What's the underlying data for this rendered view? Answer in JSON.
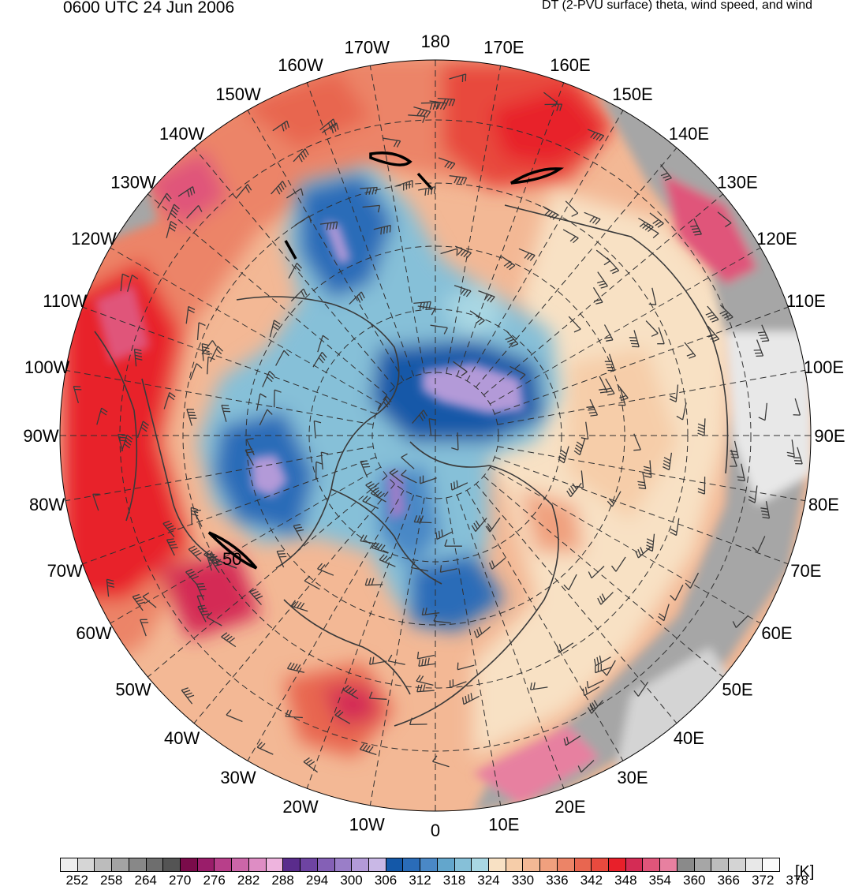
{
  "header": {
    "valid_time": "0600 UTC 24 Jun 2006",
    "description": "DT (2-PVU surface) theta, wind speed, and wind"
  },
  "map": {
    "projection": "north-polar-stereographic",
    "longitude_labels": [
      "180",
      "170E",
      "160E",
      "150E",
      "140E",
      "130E",
      "120E",
      "110E",
      "100E",
      "90E",
      "80E",
      "70E",
      "60E",
      "50E",
      "40E",
      "30E",
      "20E",
      "10E",
      "0",
      "10W",
      "20W",
      "30W",
      "40W",
      "50W",
      "60W",
      "70W",
      "80W",
      "90W",
      "100W",
      "110W",
      "120W",
      "130W",
      "140W",
      "150W",
      "160W",
      "170W"
    ],
    "contour_label": "50",
    "colors": {
      "cold_core": "#1450a0",
      "coldest": "#a890d8",
      "cool": "#7fc4dc",
      "neutral": "#f7d3b6",
      "warm": "#ef7d66",
      "hot": "#e8312e",
      "magenta": "#d84a7a",
      "gray_high": "#a5a5a5",
      "line": "#303030"
    }
  },
  "colorbar": {
    "unit": "[K]",
    "tick_labels": [
      "252",
      "258",
      "264",
      "270",
      "276",
      "282",
      "288",
      "294",
      "300",
      "306",
      "312",
      "318",
      "324",
      "330",
      "336",
      "342",
      "348",
      "354",
      "360",
      "366",
      "372",
      "378"
    ],
    "colors": [
      "#eeeeee",
      "#d6d6d6",
      "#bcbcbc",
      "#a3a3a3",
      "#888888",
      "#6e6e6e",
      "#545454",
      "#7a0b4a",
      "#9a1d6a",
      "#b83f8a",
      "#cb66a8",
      "#de8dc4",
      "#eeb4de",
      "#5a2c8c",
      "#6e44a2",
      "#8460b6",
      "#9a7ec8",
      "#b39ad8",
      "#c9b8e6",
      "#1458a8",
      "#2a6cb8",
      "#4a88c6",
      "#63a6cc",
      "#86c0d8",
      "#a9d7e3",
      "#f8e1c4",
      "#f6cda9",
      "#f3b895",
      "#f0a07e",
      "#ec8467",
      "#e86650",
      "#e84a3e",
      "#e8202a",
      "#d42c55",
      "#e0557a",
      "#e780a0",
      "#8a8a8a",
      "#a6a6a6",
      "#bdbdbd",
      "#d4d4d4",
      "#e8e8e8",
      "#fafafa"
    ]
  }
}
